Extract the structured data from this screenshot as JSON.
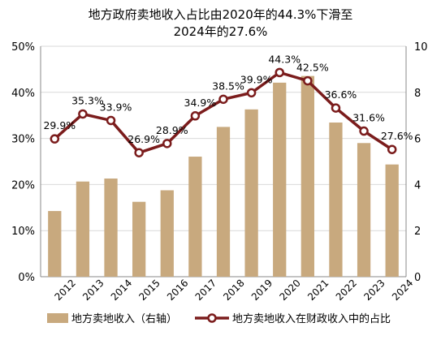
{
  "chart_data": {
    "type": "bar",
    "title_line1": "地方政府卖地收入占比由2020年的44.3%下滑至",
    "title_line2": "2024年的27.6%",
    "categories": [
      "2012",
      "2013",
      "2014",
      "2015",
      "2016",
      "2017",
      "2018",
      "2019",
      "2020",
      "2021",
      "2022",
      "2023",
      "2024"
    ],
    "series": [
      {
        "name": "地方卖地收入（右轴）",
        "type": "bar",
        "axis": "right",
        "color": "#C8A97E",
        "values": [
          2.85,
          4.13,
          4.26,
          3.25,
          3.75,
          5.21,
          6.5,
          7.26,
          8.42,
          8.71,
          6.69,
          5.8,
          4.87
        ]
      },
      {
        "name": "地方卖地收入在财政收入中的占比",
        "type": "line",
        "axis": "left",
        "color": "#7B1C1C",
        "values": [
          29.9,
          35.3,
          33.9,
          26.9,
          28.9,
          34.9,
          38.5,
          39.9,
          44.3,
          42.5,
          36.6,
          31.6,
          27.6
        ],
        "labels": [
          "29.9%",
          "35.3%",
          "33.9%",
          "26.9%",
          "28.9%",
          "34.9%",
          "38.5%",
          "39.9%",
          "44.3%",
          "42.5%",
          "36.6%",
          "31.6%",
          "27.6%"
        ]
      }
    ],
    "y_left": {
      "min": 0,
      "max": 50,
      "ticks": [
        "0%",
        "10%",
        "20%",
        "30%",
        "40%",
        "50%"
      ]
    },
    "y_right": {
      "min": 0,
      "max": 10,
      "ticks": [
        "0",
        "2",
        "4",
        "6",
        "8",
        "10"
      ]
    },
    "grid": "horizontal",
    "legend_position": "bottom"
  }
}
